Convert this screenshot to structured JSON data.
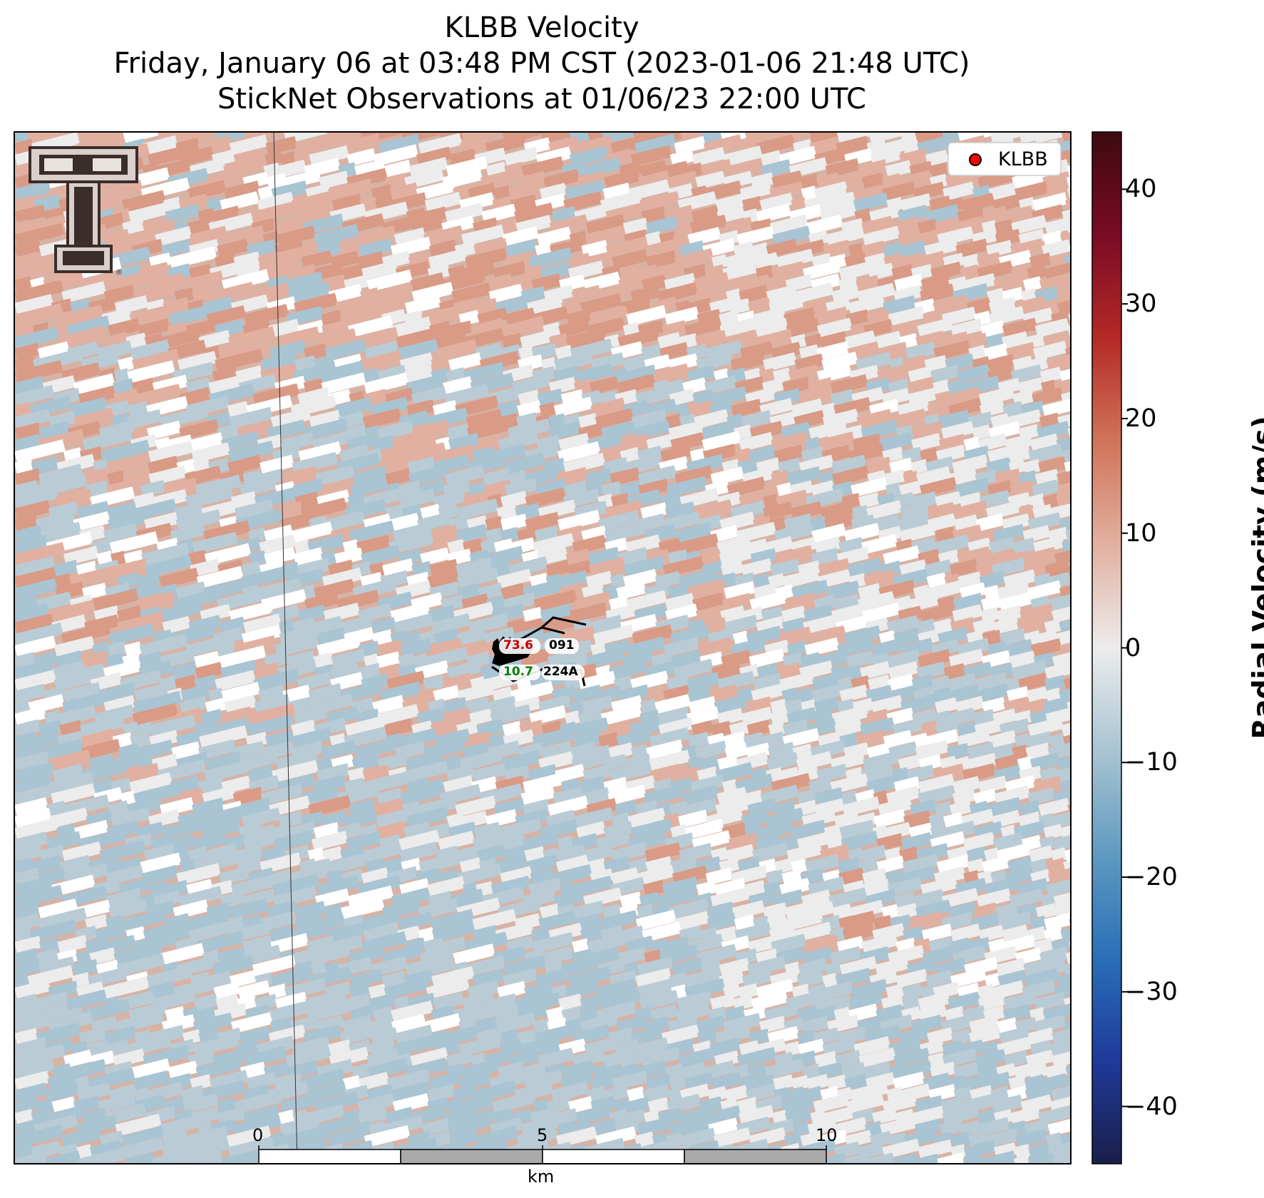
{
  "title": {
    "line1": "KLBB Velocity",
    "line2": "Friday, January 06 at 03:48 PM CST (2023-01-06 21:48 UTC)",
    "line3": "StickNet Observations at 01/06/23 22:00 UTC"
  },
  "legend": {
    "label": "KLBB",
    "marker_color": "#ff0000"
  },
  "colorbar": {
    "label": "Radial Velocity (m/s)",
    "range": [
      -45,
      45
    ],
    "ticks": [
      "40",
      "30",
      "20",
      "10",
      "0",
      "−10",
      "−20",
      "−30",
      "−40"
    ],
    "colors": [
      "#1a1f4a",
      "#1f3a9a",
      "#2a6fb8",
      "#5f9ac0",
      "#a9c4d2",
      "#ececec",
      "#e2b0a0",
      "#d0745a",
      "#b42a26",
      "#7a0b25",
      "#3d0a12"
    ]
  },
  "stations": [
    {
      "id": "091",
      "value": "73.6",
      "value_color": "#c00000"
    },
    {
      "id": "224A",
      "value": "10.7",
      "value_color": "#008000"
    }
  ],
  "scalebar": {
    "labels": [
      "0",
      "5",
      "10"
    ],
    "unit": "km"
  },
  "logo": {
    "name": "texas-tech-double-t-logo"
  }
}
